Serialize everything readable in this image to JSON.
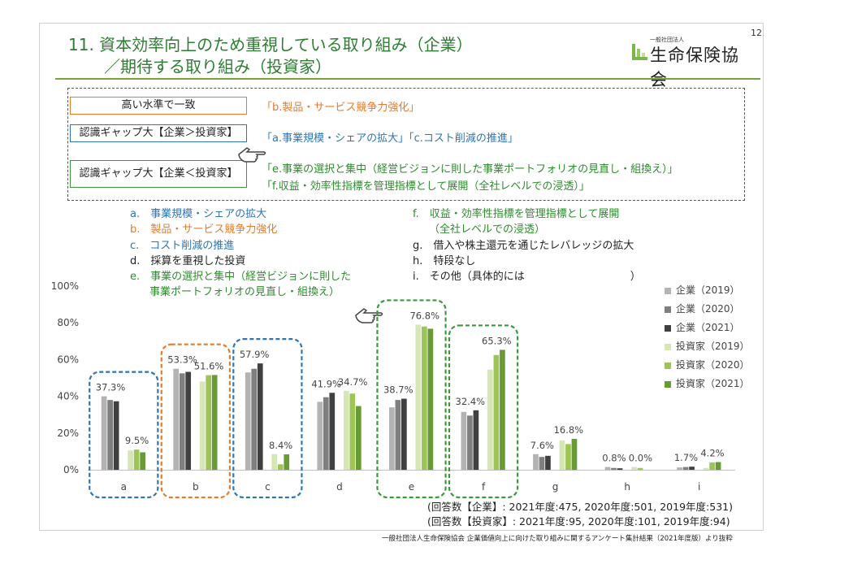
{
  "page_number": "12",
  "title": {
    "line1": "11. 資本効率向上のため重視している取り組み（企業）",
    "line2": "／期待する取り組み（投資家）"
  },
  "logo": {
    "org_small": "一般社団法人",
    "org_big": "生命保険協会"
  },
  "summary": {
    "tag_high": "高い水準で一致",
    "tag_gap_company": "認識ギャップ大【企業＞投資家】",
    "tag_gap_investor": "認識ギャップ大【企業＜投資家】",
    "text_high": "「b.製品・サービス競争力強化」",
    "text_gap_company": "「a.事業規模・シェアの拡大」「c.コスト削減の推進」",
    "text_gap_investor_1": "「e.事業の選択と集中（経営ビジョンに則した事業ポートフォリオの見直し・組換え）」",
    "text_gap_investor_2": "「f.収益・効率性指標を管理指標として展開（全社レベルでの浸透）」"
  },
  "item_legend": {
    "a": "a.　事業規模・シェアの拡大",
    "b": "b.　製品・サービス競争力強化",
    "c": "c.　コスト削減の推進",
    "d": "d.　採算を重視した投資",
    "e1": "e.　事業の選択と集中（経営ビジョンに則した",
    "e2": "事業ポートフォリオの見直し・組換え）",
    "f1": "f.　収益・効率性指標を管理指標として展開",
    "f2": "（全社レベルでの浸透）",
    "g": "g.　借入や株主還元を通じたレバレッジの拡大",
    "h": "h.　特段なし",
    "i": "i.　その他（具体的には　　　　　　　　　　）"
  },
  "notes": {
    "company": "(回答数【企業】: 2021年度:475, 2020年度:501, 2019年度:531)",
    "investor": "(回答数【投資家】: 2021年度:95, 2020年度:101, 2019年度:94)"
  },
  "source": "一般社団法人生命保険協会 企業価値向上に向けた取り組みに関するアンケート集計結果（2021年度版）より抜粋",
  "colors": {
    "company_2019": "#b3b3b3",
    "company_2020": "#7f7f7f",
    "company_2021": "#404040",
    "investor_2019": "#d6e6b4",
    "investor_2020": "#9dc556",
    "investor_2021": "#6a9a36",
    "highlight_blue": "#2e75b6",
    "highlight_orange": "#e87a2c",
    "highlight_green": "#3a9a3a"
  },
  "chart_data": {
    "type": "bar",
    "categories": [
      "a",
      "b",
      "c",
      "d",
      "e",
      "f",
      "g",
      "h",
      "i"
    ],
    "yticks": [
      "0%",
      "20%",
      "40%",
      "60%",
      "80%",
      "100%"
    ],
    "ylim": [
      0,
      100
    ],
    "series": [
      {
        "name": "企業（2019）",
        "color_key": "company_2019",
        "values": [
          40.0,
          55.0,
          53.0,
          37.0,
          34.0,
          31.5,
          8.5,
          1.5,
          1.3
        ]
      },
      {
        "name": "企業（2020）",
        "color_key": "company_2020",
        "values": [
          38.0,
          52.5,
          55.0,
          39.5,
          38.0,
          29.5,
          7.0,
          1.0,
          1.5
        ]
      },
      {
        "name": "企業（2021）",
        "color_key": "company_2021",
        "values": [
          37.3,
          53.3,
          57.9,
          41.9,
          38.7,
          32.4,
          7.6,
          0.8,
          1.7
        ]
      },
      {
        "name": "投資家（2019）",
        "color_key": "investor_2019",
        "values": [
          10.5,
          48.0,
          8.5,
          43.0,
          79.0,
          54.5,
          16.0,
          1.5,
          1.0
        ]
      },
      {
        "name": "投資家（2020）",
        "color_key": "investor_2020",
        "values": [
          11.0,
          51.5,
          3.0,
          41.5,
          78.0,
          62.5,
          14.0,
          1.0,
          4.0
        ]
      },
      {
        "name": "投資家（2021）",
        "color_key": "investor_2021",
        "values": [
          9.5,
          51.6,
          8.4,
          34.7,
          76.8,
          65.3,
          16.8,
          0.0,
          4.2
        ]
      }
    ],
    "data_labels": [
      {
        "category": "a",
        "series": "企業（2021）",
        "text": "37.3%"
      },
      {
        "category": "a",
        "series": "投資家（2021）",
        "text": "9.5%"
      },
      {
        "category": "b",
        "series": "企業（2021）",
        "text": "53.3%"
      },
      {
        "category": "b",
        "series": "投資家（2021）",
        "text": "51.6%"
      },
      {
        "category": "c",
        "series": "企業（2021）",
        "text": "57.9%"
      },
      {
        "category": "c",
        "series": "投資家（2021）",
        "text": "8.4%"
      },
      {
        "category": "d",
        "series": "企業（2021）",
        "text": "41.9%"
      },
      {
        "category": "d",
        "series": "投資家（2021）",
        "text": "34.7%"
      },
      {
        "category": "e",
        "series": "企業（2021）",
        "text": "38.7%"
      },
      {
        "category": "e",
        "series": "投資家（2021）",
        "text": "76.8%"
      },
      {
        "category": "f",
        "series": "企業（2021）",
        "text": "32.4%"
      },
      {
        "category": "f",
        "series": "投資家（2021）",
        "text": "65.3%"
      },
      {
        "category": "g",
        "series": "企業（2021）",
        "text": "7.6%"
      },
      {
        "category": "g",
        "series": "投資家（2021）",
        "text": "16.8%"
      },
      {
        "category": "h",
        "series": "企業（2021）",
        "text": "0.8%"
      },
      {
        "category": "h",
        "series": "投資家（2021）",
        "text": "0.0%"
      },
      {
        "category": "i",
        "series": "企業（2021）",
        "text": "1.7%"
      },
      {
        "category": "i",
        "series": "投資家（2021）",
        "text": "4.2%"
      }
    ],
    "highlights": [
      {
        "category": "a",
        "color_key": "highlight_blue"
      },
      {
        "category": "b",
        "color_key": "highlight_orange"
      },
      {
        "category": "c",
        "color_key": "highlight_blue"
      },
      {
        "category": "e",
        "color_key": "highlight_green"
      },
      {
        "category": "f",
        "color_key": "highlight_green"
      }
    ],
    "legend_position": "right",
    "grid": false
  }
}
